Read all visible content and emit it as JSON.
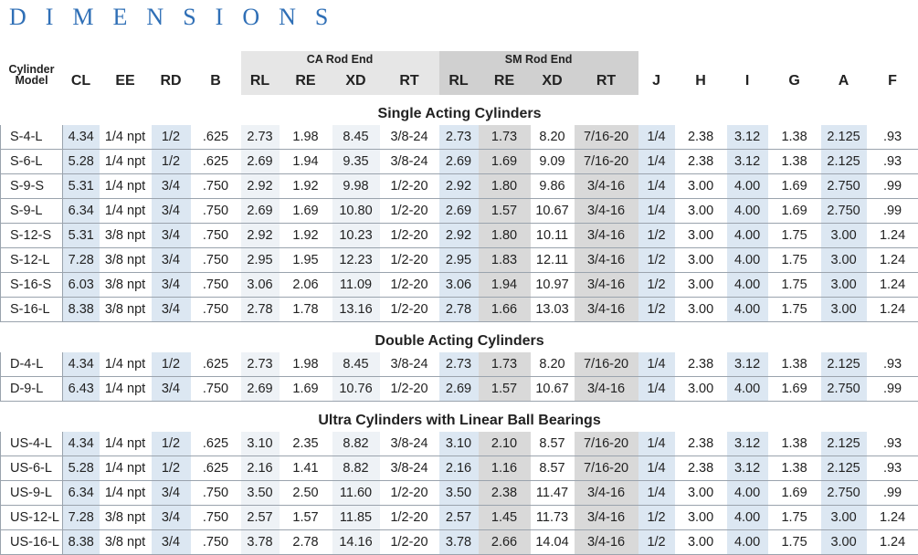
{
  "title": "DIMENSIONS",
  "header": {
    "model": "Cylinder Model",
    "groups": [
      "CA Rod End",
      "SM Rod End"
    ],
    "columns": [
      "CL",
      "EE",
      "RD",
      "B",
      "RL",
      "RE",
      "XD",
      "RT",
      "RL",
      "RE",
      "XD",
      "RT",
      "J",
      "H",
      "I",
      "G",
      "A",
      "F"
    ]
  },
  "sections": [
    {
      "title": "Single Acting Cylinders",
      "rows": [
        [
          "S-4-L",
          "4.34",
          "1/4 npt",
          "1/2",
          ".625",
          "2.73",
          "1.98",
          "8.45",
          "3/8-24",
          "2.73",
          "1.73",
          "8.20",
          "7/16-20",
          "1/4",
          "2.38",
          "3.12",
          "1.38",
          "2.125",
          ".93"
        ],
        [
          "S-6-L",
          "5.28",
          "1/4 npt",
          "1/2",
          ".625",
          "2.69",
          "1.94",
          "9.35",
          "3/8-24",
          "2.69",
          "1.69",
          "9.09",
          "7/16-20",
          "1/4",
          "2.38",
          "3.12",
          "1.38",
          "2.125",
          ".93"
        ],
        [
          "S-9-S",
          "5.31",
          "1/4 npt",
          "3/4",
          ".750",
          "2.92",
          "1.92",
          "9.98",
          "1/2-20",
          "2.92",
          "1.80",
          "9.86",
          "3/4-16",
          "1/4",
          "3.00",
          "4.00",
          "1.69",
          "2.750",
          ".99"
        ],
        [
          "S-9-L",
          "6.34",
          "1/4 npt",
          "3/4",
          ".750",
          "2.69",
          "1.69",
          "10.80",
          "1/2-20",
          "2.69",
          "1.57",
          "10.67",
          "3/4-16",
          "1/4",
          "3.00",
          "4.00",
          "1.69",
          "2.750",
          ".99"
        ],
        [
          "S-12-S",
          "5.31",
          "3/8 npt",
          "3/4",
          ".750",
          "2.92",
          "1.92",
          "10.23",
          "1/2-20",
          "2.92",
          "1.80",
          "10.11",
          "3/4-16",
          "1/2",
          "3.00",
          "4.00",
          "1.75",
          "3.00",
          "1.24"
        ],
        [
          "S-12-L",
          "7.28",
          "3/8 npt",
          "3/4",
          ".750",
          "2.95",
          "1.95",
          "12.23",
          "1/2-20",
          "2.95",
          "1.83",
          "12.11",
          "3/4-16",
          "1/2",
          "3.00",
          "4.00",
          "1.75",
          "3.00",
          "1.24"
        ],
        [
          "S-16-S",
          "6.03",
          "3/8 npt",
          "3/4",
          ".750",
          "3.06",
          "2.06",
          "11.09",
          "1/2-20",
          "3.06",
          "1.94",
          "10.97",
          "3/4-16",
          "1/2",
          "3.00",
          "4.00",
          "1.75",
          "3.00",
          "1.24"
        ],
        [
          "S-16-L",
          "8.38",
          "3/8 npt",
          "3/4",
          ".750",
          "2.78",
          "1.78",
          "13.16",
          "1/2-20",
          "2.78",
          "1.66",
          "13.03",
          "3/4-16",
          "1/2",
          "3.00",
          "4.00",
          "1.75",
          "3.00",
          "1.24"
        ]
      ]
    },
    {
      "title": "Double Acting Cylinders",
      "rows": [
        [
          "D-4-L",
          "4.34",
          "1/4 npt",
          "1/2",
          ".625",
          "2.73",
          "1.98",
          "8.45",
          "3/8-24",
          "2.73",
          "1.73",
          "8.20",
          "7/16-20",
          "1/4",
          "2.38",
          "3.12",
          "1.38",
          "2.125",
          ".93"
        ],
        [
          "D-9-L",
          "6.43",
          "1/4 npt",
          "3/4",
          ".750",
          "2.69",
          "1.69",
          "10.76",
          "1/2-20",
          "2.69",
          "1.57",
          "10.67",
          "3/4-16",
          "1/4",
          "3.00",
          "4.00",
          "1.69",
          "2.750",
          ".99"
        ]
      ]
    },
    {
      "title": "Ultra Cylinders with Linear Ball Bearings",
      "rows": [
        [
          "US-4-L",
          "4.34",
          "1/4 npt",
          "1/2",
          ".625",
          "3.10",
          "2.35",
          "8.82",
          "3/8-24",
          "3.10",
          "2.10",
          "8.57",
          "7/16-20",
          "1/4",
          "2.38",
          "3.12",
          "1.38",
          "2.125",
          ".93"
        ],
        [
          "US-6-L",
          "5.28",
          "1/4 npt",
          "1/2",
          ".625",
          "2.16",
          "1.41",
          "8.82",
          "3/8-24",
          "2.16",
          "1.16",
          "8.57",
          "7/16-20",
          "1/4",
          "2.38",
          "3.12",
          "1.38",
          "2.125",
          ".93"
        ],
        [
          "US-9-L",
          "6.34",
          "1/4 npt",
          "3/4",
          ".750",
          "3.50",
          "2.50",
          "11.60",
          "1/2-20",
          "3.50",
          "2.38",
          "11.47",
          "3/4-16",
          "1/4",
          "3.00",
          "4.00",
          "1.69",
          "2.750",
          ".99"
        ],
        [
          "US-12-L",
          "7.28",
          "3/8 npt",
          "3/4",
          ".750",
          "2.57",
          "1.57",
          "11.85",
          "1/2-20",
          "2.57",
          "1.45",
          "11.73",
          "3/4-16",
          "1/2",
          "3.00",
          "4.00",
          "1.75",
          "3.00",
          "1.24"
        ],
        [
          "US-16-L",
          "8.38",
          "3/8 npt",
          "3/4",
          ".750",
          "3.78",
          "2.78",
          "14.16",
          "1/2-20",
          "3.78",
          "2.66",
          "14.04",
          "3/4-16",
          "1/2",
          "3.00",
          "4.00",
          "1.75",
          "3.00",
          "1.24"
        ]
      ]
    }
  ]
}
